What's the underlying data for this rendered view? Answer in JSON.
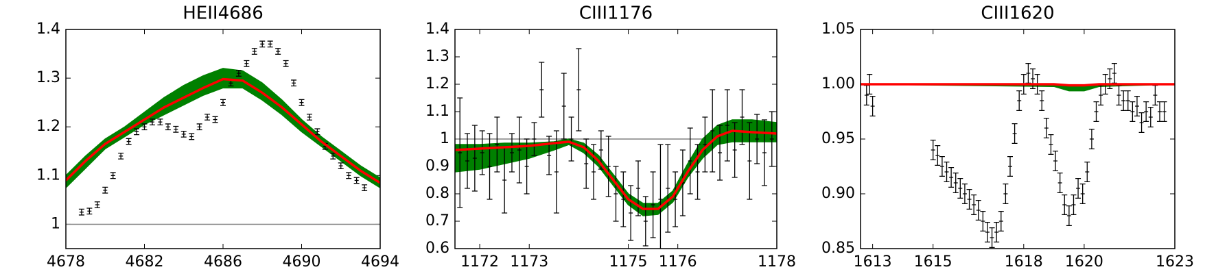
{
  "chart_data": [
    {
      "type": "errorbar",
      "title": "HEII4686",
      "xlim": [
        4678,
        4694
      ],
      "xticks": [
        4678,
        4682,
        4686,
        4690,
        4694
      ],
      "ylim": [
        0.95,
        1.4
      ],
      "yticks": [
        1.0,
        1.1,
        1.2,
        1.3,
        1.4
      ],
      "hline": 1.0,
      "hline_color": "#808080",
      "points": {
        "color": "#000000",
        "yerr": 0.006,
        "x": [
          4678.8,
          4679.2,
          4679.6,
          4680.0,
          4680.4,
          4680.8,
          4681.2,
          4681.6,
          4682.0,
          4682.4,
          4682.8,
          4683.2,
          4683.6,
          4684.0,
          4684.4,
          4684.8,
          4685.2,
          4685.6,
          4686.0,
          4686.4,
          4686.8,
          4687.2,
          4687.6,
          4688.0,
          4688.4,
          4688.8,
          4689.2,
          4689.6,
          4690.0,
          4690.4,
          4690.8,
          4691.2,
          4691.6,
          4692.0,
          4692.4,
          4692.8,
          4693.2
        ],
        "values": [
          1.025,
          1.027,
          1.04,
          1.07,
          1.1,
          1.14,
          1.17,
          1.19,
          1.2,
          1.21,
          1.21,
          1.2,
          1.195,
          1.185,
          1.18,
          1.2,
          1.22,
          1.215,
          1.25,
          1.29,
          1.31,
          1.33,
          1.355,
          1.37,
          1.37,
          1.355,
          1.33,
          1.29,
          1.25,
          1.22,
          1.19,
          1.16,
          1.14,
          1.12,
          1.1,
          1.09,
          1.075
        ]
      },
      "band": {
        "color": "#008000",
        "x": [
          4678,
          4679,
          4680,
          4681,
          4682,
          4683,
          4684,
          4685,
          4686,
          4687,
          4688,
          4689,
          4690,
          4691,
          4692,
          4693,
          4694
        ],
        "upper": [
          1.1,
          1.14,
          1.175,
          1.2,
          1.23,
          1.26,
          1.285,
          1.305,
          1.32,
          1.315,
          1.29,
          1.255,
          1.215,
          1.18,
          1.15,
          1.12,
          1.095
        ],
        "lower": [
          1.075,
          1.115,
          1.155,
          1.18,
          1.205,
          1.225,
          1.245,
          1.265,
          1.28,
          1.28,
          1.255,
          1.225,
          1.19,
          1.16,
          1.13,
          1.1,
          1.075
        ]
      },
      "model": {
        "color": "#ff0000",
        "x": [
          4678,
          4679,
          4680,
          4681,
          4682,
          4683,
          4684,
          4685,
          4686,
          4687,
          4688,
          4689,
          4690,
          4691,
          4692,
          4693,
          4694
        ],
        "values": [
          1.09,
          1.13,
          1.165,
          1.19,
          1.215,
          1.24,
          1.26,
          1.28,
          1.298,
          1.295,
          1.27,
          1.24,
          1.205,
          1.17,
          1.14,
          1.11,
          1.085
        ]
      }
    },
    {
      "type": "errorbar",
      "title": "CIII1176",
      "xlim": [
        1171.5,
        1178
      ],
      "xticks": [
        1172,
        1173,
        1175,
        1176,
        1178
      ],
      "ylim": [
        0.6,
        1.4
      ],
      "yticks": [
        0.6,
        0.7,
        0.8,
        0.9,
        1.0,
        1.1,
        1.2,
        1.3,
        1.4
      ],
      "hline": 1.0,
      "hline_color": "#808080",
      "points": {
        "color": "#000000",
        "x": [
          1171.6,
          1171.75,
          1171.9,
          1172.05,
          1172.2,
          1172.35,
          1172.5,
          1172.65,
          1172.8,
          1172.95,
          1173.1,
          1173.25,
          1173.4,
          1173.55,
          1173.7,
          1173.85,
          1174.0,
          1174.15,
          1174.3,
          1174.45,
          1174.6,
          1174.75,
          1174.9,
          1175.05,
          1175.2,
          1175.35,
          1175.5,
          1175.65,
          1175.8,
          1175.95,
          1176.1,
          1176.25,
          1176.4,
          1176.55,
          1176.7,
          1176.85,
          1177.0,
          1177.15,
          1177.3,
          1177.45,
          1177.6,
          1177.75,
          1177.9
        ],
        "values": [
          0.95,
          0.92,
          0.93,
          0.95,
          0.9,
          0.98,
          0.85,
          0.95,
          0.96,
          0.9,
          1.0,
          1.18,
          0.94,
          0.88,
          1.12,
          1.0,
          1.18,
          0.91,
          0.88,
          0.96,
          0.9,
          0.8,
          0.78,
          0.73,
          0.82,
          0.7,
          0.76,
          0.78,
          0.82,
          0.78,
          0.84,
          0.92,
          0.88,
          0.98,
          1.03,
          0.95,
          1.05,
          0.96,
          1.08,
          0.92,
          1.0,
          0.95,
          1.0
        ],
        "errors": [
          0.2,
          0.1,
          0.12,
          0.08,
          0.12,
          0.1,
          0.12,
          0.07,
          0.12,
          0.1,
          0.06,
          0.1,
          0.07,
          0.15,
          0.12,
          0.08,
          0.15,
          0.09,
          0.1,
          0.07,
          0.11,
          0.1,
          0.1,
          0.1,
          0.1,
          0.09,
          0.12,
          0.2,
          0.16,
          0.1,
          0.12,
          0.12,
          0.1,
          0.1,
          0.15,
          0.1,
          0.13,
          0.1,
          0.1,
          0.14,
          0.09,
          0.12,
          0.1
        ]
      },
      "band": {
        "color": "#008000",
        "x": [
          1171.5,
          1172,
          1172.5,
          1173,
          1173.5,
          1173.8,
          1174.1,
          1174.4,
          1174.7,
          1175,
          1175.3,
          1175.6,
          1175.9,
          1176.2,
          1176.5,
          1176.8,
          1177.1,
          1177.5,
          1178
        ],
        "upper": [
          0.98,
          0.98,
          0.985,
          0.985,
          0.99,
          1.0,
          0.985,
          0.94,
          0.87,
          0.8,
          0.765,
          0.765,
          0.81,
          0.91,
          1.0,
          1.05,
          1.07,
          1.07,
          1.06
        ],
        "lower": [
          0.88,
          0.89,
          0.91,
          0.93,
          0.96,
          0.98,
          0.95,
          0.9,
          0.83,
          0.76,
          0.72,
          0.725,
          0.77,
          0.86,
          0.93,
          0.98,
          0.99,
          0.99,
          0.99
        ]
      },
      "model": {
        "color": "#ff0000",
        "x": [
          1171.5,
          1172,
          1172.5,
          1173,
          1173.5,
          1173.8,
          1174.1,
          1174.4,
          1174.7,
          1175,
          1175.3,
          1175.6,
          1175.9,
          1176.2,
          1176.5,
          1176.8,
          1177.1,
          1177.5,
          1178
        ],
        "values": [
          0.96,
          0.965,
          0.97,
          0.975,
          0.985,
          0.99,
          0.97,
          0.92,
          0.85,
          0.78,
          0.745,
          0.745,
          0.79,
          0.88,
          0.96,
          1.01,
          1.03,
          1.025,
          1.02
        ]
      }
    },
    {
      "type": "errorbar",
      "title": "CIII1620",
      "xlim": [
        1612.6,
        1623
      ],
      "xticks": [
        1613,
        1615,
        1618,
        1620,
        1623
      ],
      "ylim": [
        0.85,
        1.05
      ],
      "yticks": [
        0.85,
        {
          "value": 0.9,
          "label": "0.90"
        },
        0.95,
        {
          "value": 1.0,
          "label": "1.00"
        },
        1.05
      ],
      "points": {
        "color": "#000000",
        "yerr": 0.009,
        "x": [
          1612.8,
          1612.9,
          1613.0,
          1615.0,
          1615.15,
          1615.3,
          1615.45,
          1615.6,
          1615.75,
          1615.9,
          1616.05,
          1616.2,
          1616.35,
          1616.5,
          1616.65,
          1616.8,
          1616.95,
          1617.1,
          1617.25,
          1617.4,
          1617.55,
          1617.7,
          1617.85,
          1618.0,
          1618.15,
          1618.3,
          1618.45,
          1618.6,
          1618.75,
          1618.9,
          1619.05,
          1619.2,
          1619.35,
          1619.5,
          1619.65,
          1619.8,
          1619.95,
          1620.1,
          1620.25,
          1620.4,
          1620.55,
          1620.7,
          1620.85,
          1621.0,
          1621.15,
          1621.3,
          1621.45,
          1621.6,
          1621.75,
          1621.9,
          1622.05,
          1622.2,
          1622.35,
          1622.5,
          1622.65
        ],
        "values": [
          0.99,
          1.0,
          0.98,
          0.94,
          0.935,
          0.925,
          0.92,
          0.915,
          0.91,
          0.905,
          0.9,
          0.895,
          0.89,
          0.885,
          0.875,
          0.865,
          0.86,
          0.865,
          0.875,
          0.9,
          0.925,
          0.955,
          0.985,
          1.0,
          1.01,
          1.005,
          1.0,
          0.985,
          0.96,
          0.945,
          0.93,
          0.91,
          0.89,
          0.88,
          0.89,
          0.905,
          0.9,
          0.92,
          0.95,
          0.975,
          0.99,
          1.0,
          1.005,
          1.01,
          0.99,
          0.985,
          0.985,
          0.975,
          0.98,
          0.965,
          0.975,
          0.97,
          0.99,
          0.975,
          0.975
        ]
      },
      "band": {
        "color": "#008000",
        "x": [
          1612.6,
          1619,
          1619.5,
          1620,
          1620.5,
          1623
        ],
        "upper": [
          1.0,
          1.0,
          0.999,
          0.999,
          1.0,
          1.0
        ],
        "lower": [
          1.0,
          0.998,
          0.994,
          0.994,
          0.998,
          1.0
        ]
      },
      "model": {
        "color": "#ff0000",
        "x": [
          1612.6,
          1619,
          1619.5,
          1620,
          1620.5,
          1623
        ],
        "values": [
          1.0,
          1.0,
          0.999,
          0.999,
          1.0,
          1.0
        ]
      }
    }
  ]
}
